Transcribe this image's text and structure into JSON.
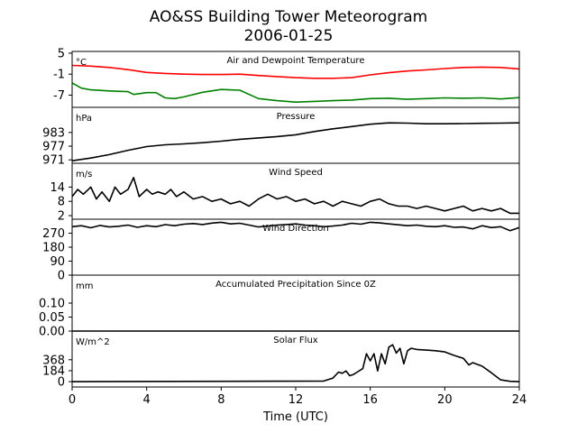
{
  "chart_data": {
    "type": "line",
    "title": "AO&SS Building Tower Meteorogram",
    "subtitle": "2006-01-25",
    "xlabel": "Time (UTC)",
    "xlim": [
      0,
      24
    ],
    "x_ticks": [
      "0",
      "4",
      "8",
      "12",
      "16",
      "20",
      "24"
    ],
    "panels": [
      {
        "id": "temperature",
        "title": "Air and Dewpoint Temperature",
        "unit": "°C",
        "ylim": [
          -10.5,
          5.5
        ],
        "y_ticks": [
          5,
          -1,
          -7
        ],
        "series": [
          {
            "key": "air",
            "color": "#ff0000",
            "x": [
              0,
              1,
              2,
              3,
              4,
              5,
              6,
              7,
              8,
              9,
              10,
              11,
              12,
              13,
              14,
              15,
              16,
              17,
              18,
              19,
              20,
              21,
              22,
              23,
              24
            ],
            "y": [
              1.5,
              1.3,
              0.9,
              0.3,
              -0.5,
              -0.8,
              -1.0,
              -1.1,
              -1.1,
              -1.0,
              -1.4,
              -1.7,
              -2.0,
              -2.2,
              -2.2,
              -2.0,
              -1.2,
              -0.6,
              -0.1,
              0.2,
              0.6,
              0.9,
              1.0,
              0.9,
              0.5
            ]
          },
          {
            "key": "dewpoint",
            "color": "#008000",
            "x": [
              0,
              0.5,
              1,
              2,
              3,
              3.3,
              4,
              4.5,
              5,
              5.5,
              6,
              7,
              8,
              9,
              10,
              11,
              12,
              13,
              14,
              15,
              16,
              17,
              18,
              19,
              20,
              21,
              22,
              23,
              24
            ],
            "y": [
              -3.5,
              -5.0,
              -5.5,
              -5.8,
              -6.0,
              -6.8,
              -6.3,
              -6.3,
              -7.8,
              -8.0,
              -7.5,
              -6.2,
              -5.4,
              -5.6,
              -8.0,
              -8.6,
              -9.0,
              -8.8,
              -8.6,
              -8.4,
              -8.0,
              -7.9,
              -8.2,
              -8.0,
              -7.8,
              -7.9,
              -7.8,
              -8.1,
              -7.7
            ]
          }
        ]
      },
      {
        "id": "pressure",
        "title": "Pressure",
        "unit": "hPa",
        "ylim": [
          969.5,
          994
        ],
        "y_ticks": [
          983,
          977,
          971
        ],
        "series": [
          {
            "key": "pressure",
            "color": "#000000",
            "x": [
              0,
              1,
              2,
              3,
              4,
              5,
              6,
              7,
              8,
              9,
              10,
              11,
              12,
              13,
              14,
              15,
              16,
              17,
              18,
              19,
              20,
              21,
              22,
              23,
              24
            ],
            "y": [
              970.6,
              971.8,
              973.3,
              975.2,
              976.8,
              977.6,
              978.0,
              978.5,
              979.2,
              980.0,
              980.6,
              981.2,
              982.0,
              983.4,
              984.6,
              985.6,
              986.6,
              987.2,
              987.1,
              986.8,
              986.8,
              986.9,
              987.0,
              987.1,
              987.2
            ]
          }
        ]
      },
      {
        "id": "wind_speed",
        "title": "Wind Speed",
        "unit": "m/s",
        "ylim": [
          0.5,
          24
        ],
        "y_ticks": [
          14,
          8,
          2
        ],
        "series": [
          {
            "key": "wind_speed",
            "color": "#000000",
            "x": [
              0,
              0.3,
              0.6,
              1,
              1.3,
              1.6,
              2,
              2.3,
              2.6,
              3,
              3.3,
              3.6,
              4,
              4.3,
              4.6,
              5,
              5.3,
              5.6,
              6,
              6.5,
              7,
              7.5,
              8,
              8.5,
              9,
              9.5,
              10,
              10.5,
              11,
              11.5,
              12,
              12.5,
              13,
              13.5,
              14,
              14.5,
              15,
              15.5,
              16,
              16.5,
              17,
              17.5,
              18,
              18.5,
              19,
              19.5,
              20,
              20.5,
              21,
              21.5,
              22,
              22.5,
              23,
              23.5,
              24
            ],
            "y": [
              10,
              13,
              11,
              14,
              9,
              12,
              8,
              14,
              11,
              13,
              18,
              10,
              13,
              11,
              12,
              11,
              13,
              10,
              12,
              9,
              10,
              8,
              9,
              7,
              8,
              6,
              9,
              11,
              9,
              10,
              8,
              9,
              7,
              8,
              6,
              8,
              7,
              6,
              8,
              9,
              7,
              6,
              6,
              5,
              6,
              5,
              4,
              5,
              6,
              4,
              5,
              4,
              5,
              3,
              3
            ]
          }
        ]
      },
      {
        "id": "wind_direction",
        "title": "Wind Direction",
        "unit": "",
        "ylim": [
          0,
          360
        ],
        "y_ticks": [
          270,
          180,
          90,
          0
        ],
        "series": [
          {
            "key": "wind_direction",
            "color": "#000000",
            "x": [
              0,
              0.5,
              1,
              1.5,
              2,
              2.5,
              3,
              3.5,
              4,
              4.5,
              5,
              5.5,
              6,
              6.5,
              7,
              7.5,
              8,
              8.5,
              9,
              9.5,
              10,
              10.5,
              11,
              11.5,
              12,
              12.5,
              13,
              13.5,
              14,
              14.5,
              15,
              15.5,
              16,
              16.5,
              17,
              17.5,
              18,
              18.5,
              19,
              19.5,
              20,
              20.5,
              21,
              21.5,
              22,
              22.5,
              23,
              23.5,
              24
            ],
            "y": [
              312,
              318,
              305,
              320,
              310,
              315,
              322,
              308,
              318,
              312,
              325,
              318,
              328,
              332,
              326,
              335,
              340,
              330,
              334,
              322,
              310,
              316,
              322,
              326,
              330,
              322,
              318,
              312,
              316,
              322,
              334,
              328,
              340,
              336,
              330,
              324,
              318,
              322,
              315,
              312,
              318,
              308,
              310,
              298,
              318,
              306,
              312,
              286,
              306
            ]
          }
        ]
      },
      {
        "id": "precipitation",
        "title": "Accumulated Precipitation Since 0Z",
        "unit": "mm",
        "ylim": [
          0,
          0.2
        ],
        "y_ticks": [
          0.1,
          0.05,
          0.0
        ],
        "y_tick_labels": [
          "0.10",
          "0.05",
          "0.00"
        ],
        "series": [
          {
            "key": "precipitation",
            "color": "#000000",
            "x": [
              0,
              24
            ],
            "y": [
              0,
              0
            ]
          }
        ]
      },
      {
        "id": "solar_flux",
        "title": "Solar Flux",
        "unit": "W/m^2",
        "ylim": [
          -90,
          850
        ],
        "y_ticks": [
          368,
          184,
          0
        ],
        "series": [
          {
            "key": "solar_flux",
            "color": "#000000",
            "x": [
              0,
              13.5,
              14,
              14.3,
              14.5,
              14.7,
              14.9,
              15.1,
              15.3,
              15.6,
              15.8,
              16,
              16.2,
              16.4,
              16.6,
              16.8,
              17,
              17.2,
              17.4,
              17.6,
              17.8,
              18,
              18.2,
              18.5,
              19,
              19.5,
              20,
              20.5,
              21,
              21.3,
              21.5,
              22,
              22.5,
              23,
              23.5,
              24
            ],
            "y": [
              0,
              10,
              60,
              160,
              140,
              180,
              100,
              120,
              160,
              220,
              470,
              350,
              470,
              180,
              470,
              300,
              580,
              620,
              480,
              560,
              300,
              520,
              560,
              540,
              530,
              520,
              500,
              440,
              390,
              280,
              320,
              260,
              150,
              30,
              5,
              0
            ]
          }
        ]
      }
    ]
  }
}
